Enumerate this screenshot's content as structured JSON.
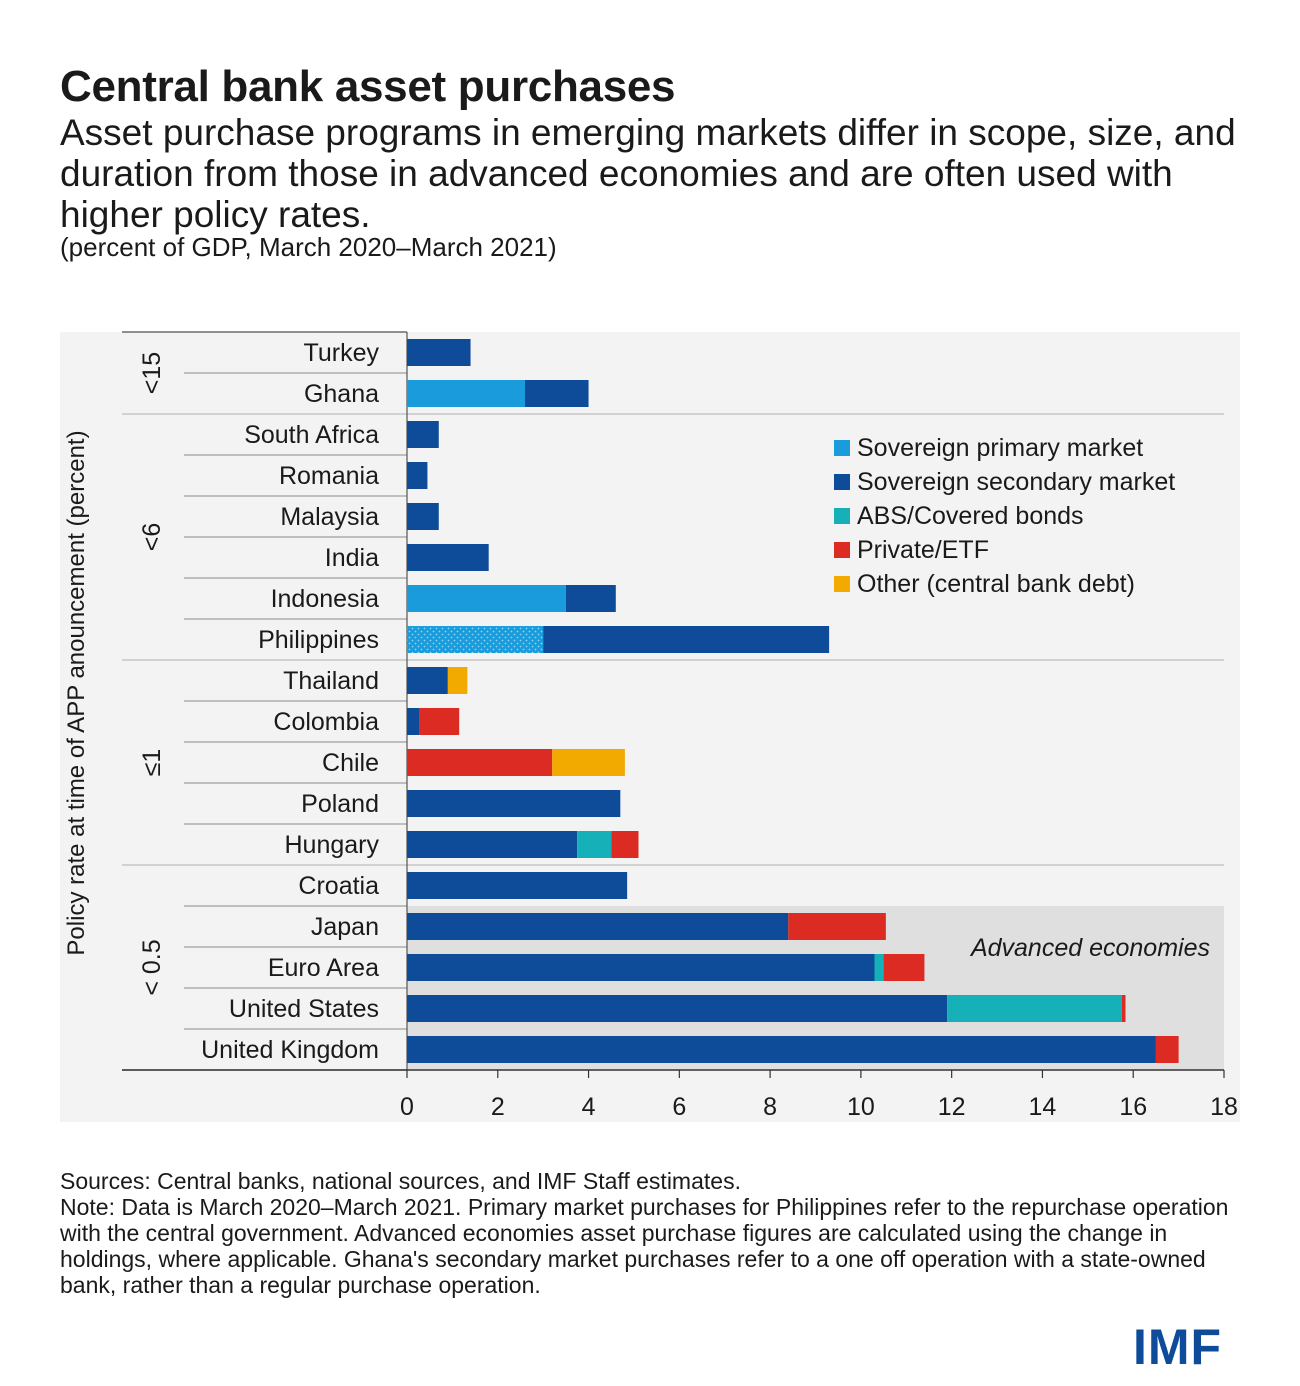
{
  "title": "Central bank asset purchases",
  "subtitle": "Asset purchase programs in emerging markets differ in scope, size, and duration from those in advanced economies and are often used with higher policy rates.",
  "units": "(percent of GDP, March 2020–March 2021)",
  "sources": "Sources: Central banks, national sources, and IMF Staff estimates.",
  "note": "Note: Data is March 2020–March 2021. Primary market purchases for Philippines refer to the repurchase operation with the central government. Advanced economies asset purchase figures are calculated using the change in holdings, where applicable. Ghana's secondary market purchases refer to a one off operation with a state-owned bank, rather than a regular purchase operation.",
  "logo": "IMF",
  "colors": {
    "sovereign_primary": "#1a9bdc",
    "sovereign_secondary": "#0e4c9a",
    "abs_covered": "#16b0b8",
    "private_etf": "#dc2b22",
    "other": "#f2a900",
    "panel_bg": "#f3f3f3",
    "advanced_bg": "#dfdfdf"
  },
  "chart_data": {
    "type": "bar",
    "orientation": "horizontal",
    "stacked": true,
    "ylabel": "Policy rate at time of APP anouncement (percent)",
    "xlim": [
      0,
      18
    ],
    "xticks": [
      0,
      2,
      4,
      6,
      8,
      10,
      12,
      14,
      16,
      18
    ],
    "legend_position": "top-right",
    "annotation": "Advanced economies",
    "groups": [
      {
        "label": "<15",
        "countries": [
          "Turkey",
          "Ghana"
        ]
      },
      {
        "label": "<6",
        "countries": [
          "South Africa",
          "Romania",
          "Malaysia",
          "India",
          "Indonesia",
          "Philippines"
        ]
      },
      {
        "label": "≤1",
        "countries": [
          "Thailand",
          "Colombia",
          "Chile",
          "Poland",
          "Hungary"
        ]
      },
      {
        "label": "< 0.5",
        "countries": [
          "Croatia",
          "Japan",
          "Euro Area",
          "United States",
          "United Kingdom"
        ]
      }
    ],
    "categories": [
      "Turkey",
      "Ghana",
      "South Africa",
      "Romania",
      "Malaysia",
      "India",
      "Indonesia",
      "Philippines",
      "Thailand",
      "Colombia",
      "Chile",
      "Poland",
      "Hungary",
      "Croatia",
      "Japan",
      "Euro Area",
      "United States",
      "United Kingdom"
    ],
    "advanced_economies": [
      "Japan",
      "Euro Area",
      "United States",
      "United Kingdom"
    ],
    "series": [
      {
        "name": "Sovereign primary market",
        "key": "sovereign_primary",
        "values": [
          0,
          2.6,
          0,
          0,
          0,
          0,
          3.5,
          3.0,
          0,
          0,
          0,
          0,
          0,
          0,
          0,
          0,
          0,
          0
        ]
      },
      {
        "name": "Sovereign secondary market",
        "key": "sovereign_secondary",
        "values": [
          1.4,
          1.4,
          0.7,
          0.45,
          0.7,
          1.8,
          1.1,
          6.3,
          0.9,
          0.28,
          0,
          4.7,
          3.75,
          4.85,
          8.4,
          10.3,
          11.9,
          16.5
        ]
      },
      {
        "name": "ABS/Covered bonds",
        "key": "abs_covered",
        "values": [
          0,
          0,
          0,
          0,
          0,
          0,
          0,
          0,
          0,
          0,
          0,
          0,
          0.75,
          0,
          0,
          0.2,
          3.85,
          0
        ]
      },
      {
        "name": "Private/ETF",
        "key": "private_etf",
        "values": [
          0,
          0,
          0,
          0,
          0,
          0,
          0,
          0,
          0,
          0.87,
          3.2,
          0,
          0.6,
          0,
          2.15,
          0.9,
          0.08,
          0.5
        ]
      },
      {
        "name": "Other (central bank debt)",
        "key": "other",
        "values": [
          0,
          0,
          0,
          0,
          0,
          0,
          0,
          0,
          0.43,
          0,
          1.6,
          0,
          0,
          0,
          0,
          0,
          0,
          0
        ]
      }
    ]
  }
}
